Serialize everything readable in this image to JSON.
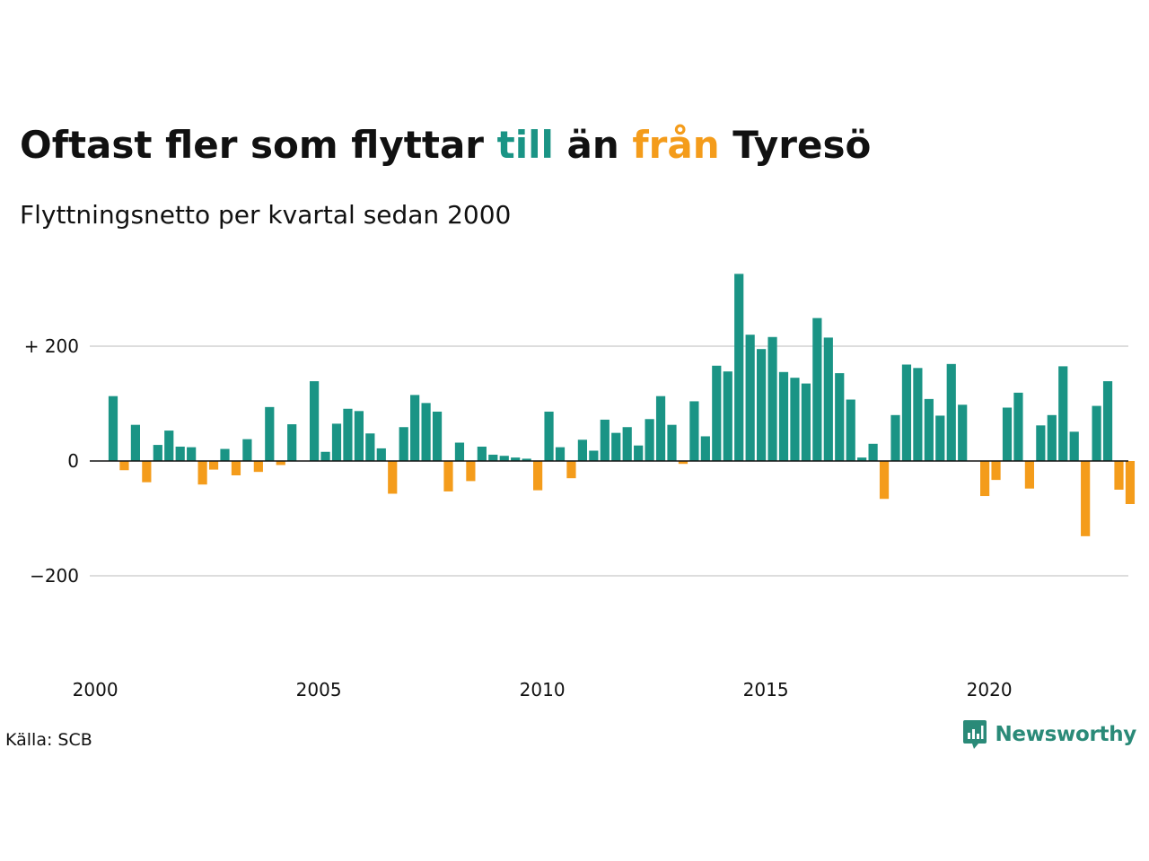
{
  "title": {
    "part1": "Oftast fler som flyttar ",
    "highlight_in": "till",
    "part2": " än ",
    "highlight_out": "från",
    "part3": " Tyresö"
  },
  "subtitle": "Flyttningsnetto per kvartal sedan 2000",
  "source": "Källa: SCB",
  "logo": {
    "text": "Newsworthy",
    "icon": "chart-speech-bubble-icon"
  },
  "colors": {
    "positive": "#1a9485",
    "negative": "#f49c1b",
    "text": "#111111",
    "grid": "#dddddd",
    "logo": "#2a8a78"
  },
  "chart_data": {
    "type": "bar",
    "title": "Oftast fler som flyttar till än från Tyresö",
    "subtitle": "Flyttningsnetto per kvartal sedan 2000",
    "x_start_year": 2000,
    "periods_per_year": 4,
    "xticks": [
      "2000",
      "2005",
      "2010",
      "2015",
      "2020"
    ],
    "yticks": [
      {
        "value": 200,
        "label": "+ 200"
      },
      {
        "value": 0,
        "label": "0"
      },
      {
        "value": -200,
        "label": "−200"
      }
    ],
    "ylim": [
      -340,
      340
    ],
    "grid": true,
    "values": [
      113,
      -16,
      63,
      -37,
      28,
      53,
      25,
      24,
      -41,
      -15,
      21,
      -25,
      38,
      -19,
      94,
      -7,
      64,
      0,
      139,
      16,
      65,
      91,
      87,
      48,
      22,
      -57,
      59,
      115,
      101,
      86,
      -53,
      32,
      -35,
      25,
      11,
      9,
      6,
      4,
      -51,
      86,
      24,
      -30,
      37,
      18,
      72,
      49,
      59,
      27,
      73,
      113,
      63,
      -5,
      104,
      43,
      166,
      156,
      326,
      220,
      195,
      216,
      155,
      145,
      135,
      249,
      215,
      153,
      107,
      6,
      30,
      -66,
      80,
      168,
      162,
      108,
      79,
      169,
      98,
      0,
      -61,
      -33,
      93,
      119,
      -48,
      62,
      80,
      165,
      51,
      -131,
      96,
      139,
      -50,
      -75
    ]
  }
}
